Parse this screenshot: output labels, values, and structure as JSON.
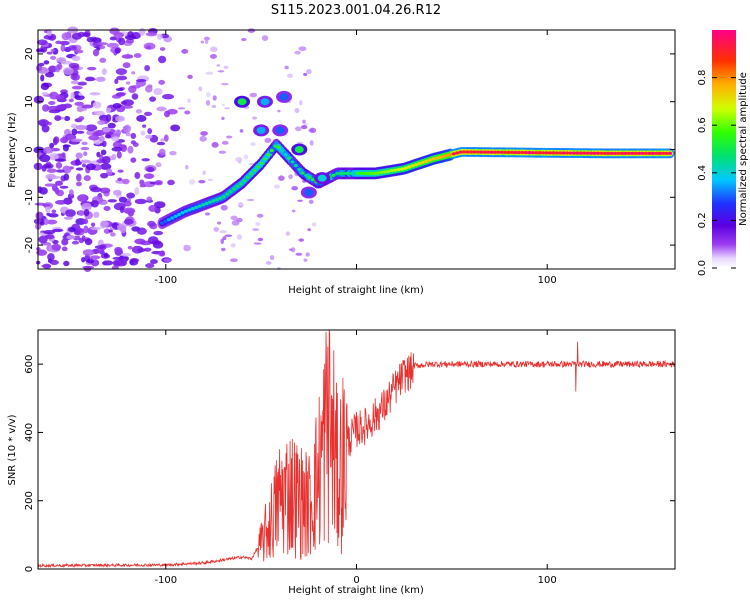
{
  "title": "S115.2023.001.04.26.R12",
  "chart_data": [
    {
      "type": "heatmap",
      "xlabel": "Height of straight line (km)",
      "ylabel": "Frequency (Hz)",
      "xlim": [
        -167,
        167
      ],
      "ylim": [
        -25,
        25
      ],
      "xticks": [
        -100,
        0,
        100
      ],
      "xtick_labels": [
        "-100",
        "",
        "100"
      ],
      "yticks": [
        -20,
        -10,
        0,
        10,
        20
      ],
      "colorbar": {
        "label": "Normalized spectral amplitude",
        "range": [
          0,
          1
        ],
        "ticks": [
          0.0,
          0.2,
          0.4,
          0.6,
          0.8
        ],
        "tick_labels": [
          "0.0",
          "0.2",
          "0.4",
          "0.6",
          "0.8"
        ],
        "colormap": "rainbow: white-violet-purple-blue-cyan-green-yellow-orange-red-magenta"
      },
      "ridge": [
        {
          "x": -100,
          "y": -15
        },
        {
          "x": -90,
          "y": -13
        },
        {
          "x": -80,
          "y": -11.5
        },
        {
          "x": -70,
          "y": -10
        },
        {
          "x": -60,
          "y": -7
        },
        {
          "x": -50,
          "y": -3
        },
        {
          "x": -42,
          "y": 1
        },
        {
          "x": -35,
          "y": -2
        },
        {
          "x": -28,
          "y": -5
        },
        {
          "x": -20,
          "y": -7
        },
        {
          "x": -10,
          "y": -5
        },
        {
          "x": 0,
          "y": -5
        },
        {
          "x": 10,
          "y": -5
        },
        {
          "x": 25,
          "y": -4
        },
        {
          "x": 40,
          "y": -2
        },
        {
          "x": 55,
          "y": -0.5
        },
        {
          "x": 80,
          "y": -0.6
        },
        {
          "x": 100,
          "y": -0.7
        },
        {
          "x": 130,
          "y": -0.8
        },
        {
          "x": 165,
          "y": -0.8
        }
      ],
      "side_features": [
        {
          "x": -60,
          "y": 10,
          "amp": 0.5
        },
        {
          "x": -48,
          "y": 10,
          "amp": 0.35
        },
        {
          "x": -38,
          "y": 11,
          "amp": 0.3
        },
        {
          "x": -50,
          "y": 4,
          "amp": 0.35
        },
        {
          "x": -40,
          "y": 4,
          "amp": 0.3
        },
        {
          "x": -30,
          "y": 0,
          "amp": 0.5
        },
        {
          "x": -18,
          "y": -6,
          "amp": 0.4
        },
        {
          "x": -25,
          "y": -9,
          "amp": 0.3
        }
      ]
    },
    {
      "type": "line",
      "xlabel": "Height of straight line (km)",
      "ylabel": "SNR (10 * v/v)",
      "xlim": [
        -167,
        167
      ],
      "ylim": [
        0,
        700
      ],
      "xticks": [
        -100,
        0,
        100
      ],
      "xtick_labels": [
        "-100",
        "0",
        "100"
      ],
      "yticks": [
        0,
        200,
        400,
        600
      ],
      "series": [
        {
          "color": "#e8302e",
          "envelope": [
            {
              "x": -167,
              "y": 10
            },
            {
              "x": -100,
              "y": 12
            },
            {
              "x": -80,
              "y": 18
            },
            {
              "x": -60,
              "y": 35
            },
            {
              "x": -55,
              "y": 30
            },
            {
              "x": -50,
              "y": 80
            },
            {
              "x": -45,
              "y": 150
            },
            {
              "x": -40,
              "y": 230
            },
            {
              "x": -35,
              "y": 250
            },
            {
              "x": -30,
              "y": 220
            },
            {
              "x": -25,
              "y": 200
            },
            {
              "x": -20,
              "y": 300
            },
            {
              "x": -15,
              "y": 480
            },
            {
              "x": -10,
              "y": 300
            },
            {
              "x": -5,
              "y": 380
            },
            {
              "x": 0,
              "y": 420
            },
            {
              "x": 5,
              "y": 430
            },
            {
              "x": 10,
              "y": 460
            },
            {
              "x": 15,
              "y": 490
            },
            {
              "x": 20,
              "y": 540
            },
            {
              "x": 25,
              "y": 580
            },
            {
              "x": 30,
              "y": 595
            },
            {
              "x": 40,
              "y": 600
            },
            {
              "x": 60,
              "y": 600
            },
            {
              "x": 100,
              "y": 600
            },
            {
              "x": 115,
              "y": 600
            },
            {
              "x": 140,
              "y": 600
            },
            {
              "x": 167,
              "y": 600
            }
          ],
          "spikes": [
            {
              "x": -14,
              "y": 690
            },
            {
              "x": -12,
              "y": 640
            },
            {
              "x": 116,
              "y": 665
            },
            {
              "x": 115,
              "y": 520
            }
          ]
        }
      ]
    }
  ]
}
